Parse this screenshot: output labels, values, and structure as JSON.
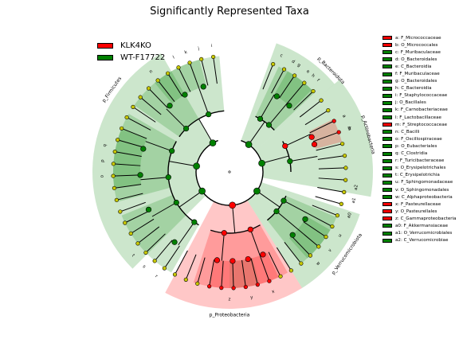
{
  "chart_data": {
    "type": "cladogram",
    "title": "Significantly Represented Taxa",
    "group_legend": [
      {
        "name": "KLK4KO",
        "color": "#ff0000"
      },
      {
        "name": "WT-F17722",
        "color": "#008000"
      }
    ],
    "clades": [
      {
        "key": "a",
        "name": "F_Micrococcaceae",
        "group": "KLK4KO"
      },
      {
        "key": "b",
        "name": "O_Micrococcales",
        "group": "KLK4KO"
      },
      {
        "key": "c",
        "name": "F_Muribaculaceae",
        "group": "WT-F17722"
      },
      {
        "key": "d",
        "name": "O_Bacteroidales",
        "group": "WT-F17722"
      },
      {
        "key": "e",
        "name": "C_Bacteroidia",
        "group": "WT-F17722"
      },
      {
        "key": "f",
        "name": "F_Muribaculaceae",
        "group": "WT-F17722"
      },
      {
        "key": "g",
        "name": "O_Bacteroidales",
        "group": "WT-F17722"
      },
      {
        "key": "h",
        "name": "C_Bacteroidia",
        "group": "WT-F17722"
      },
      {
        "key": "i",
        "name": "F_Staphylococcaceae",
        "group": "WT-F17722"
      },
      {
        "key": "j",
        "name": "O_Bacillales",
        "group": "WT-F17722"
      },
      {
        "key": "k",
        "name": "F_Carnobacteriaceae",
        "group": "WT-F17722"
      },
      {
        "key": "l",
        "name": "F_Lactobacillaceae",
        "group": "WT-F17722"
      },
      {
        "key": "m",
        "name": "F_Streptococcaceae",
        "group": "KLK4KO"
      },
      {
        "key": "n",
        "name": "C_Bacilli",
        "group": "WT-F17722"
      },
      {
        "key": "o",
        "name": "F_Oscillospiraceae",
        "group": "WT-F17722"
      },
      {
        "key": "p",
        "name": "O_Eubacteriales",
        "group": "WT-F17722"
      },
      {
        "key": "q",
        "name": "C_Clostridia",
        "group": "WT-F17722"
      },
      {
        "key": "r",
        "name": "F_Turicibacteraceae",
        "group": "WT-F17722"
      },
      {
        "key": "s",
        "name": "O_Erysipelotrichales",
        "group": "WT-F17722"
      },
      {
        "key": "t",
        "name": "C_Erysipelotrichia",
        "group": "WT-F17722"
      },
      {
        "key": "u",
        "name": "F_Sphingomonadaceae",
        "group": "WT-F17722"
      },
      {
        "key": "v",
        "name": "O_Sphingomonadales",
        "group": "WT-F17722"
      },
      {
        "key": "w",
        "name": "C_Alphaproteobacteria",
        "group": "WT-F17722"
      },
      {
        "key": "x",
        "name": "F_Pasteurellaceae",
        "group": "KLK4KO"
      },
      {
        "key": "y",
        "name": "O_Pasteurellales",
        "group": "KLK4KO"
      },
      {
        "key": "z",
        "name": "C_Gammaproteobacteria",
        "group": "KLK4KO"
      },
      {
        "key": "a0",
        "name": "F_Akkermansiaceae",
        "group": "WT-F17722"
      },
      {
        "key": "a1",
        "name": "O_Verrucomicrobiales",
        "group": "WT-F17722"
      },
      {
        "key": "a2",
        "name": "C_Verrucomicrobiae",
        "group": "WT-F17722"
      }
    ],
    "phylum_labels": [
      {
        "text": "p_Bacteroidota",
        "group": "WT-F17722"
      },
      {
        "text": "p_Actinobacteria",
        "group": "WT-F17722"
      },
      {
        "text": "p_Firmicutes",
        "group": "WT-F17722"
      },
      {
        "text": "p_Proteobacteria",
        "group": "KLK4KO"
      },
      {
        "text": "p_Verrucomicrobiota",
        "group": "WT-F17722"
      }
    ],
    "colors": {
      "KLK4KO": "#ff0000",
      "WT-F17722": "#008000",
      "non_significant_node": "#c8c800"
    }
  }
}
